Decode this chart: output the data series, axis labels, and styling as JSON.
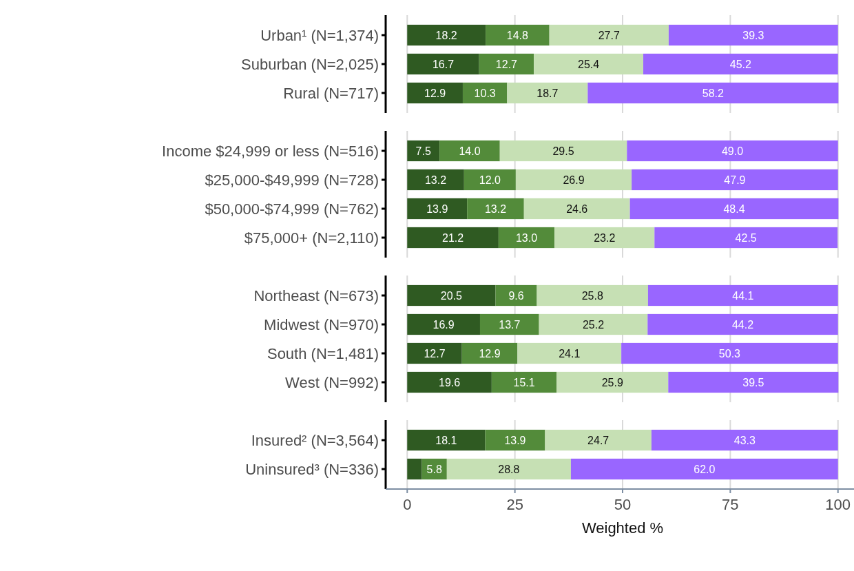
{
  "chart_data": [
    {
      "type": "bar",
      "orientation": "horizontal",
      "stacked": true,
      "categories": [
        "Urban¹ (N=1,374)",
        "Suburban (N=2,025)",
        "Rural (N=717)"
      ],
      "xlim": [
        -5,
        105
      ],
      "xticks": [
        0,
        25,
        50,
        75,
        100
      ],
      "grid": "x",
      "tick_labels": "y",
      "series": [
        {
          "color": "#2f5a22",
          "values": [
            18.2,
            16.7,
            12.9
          ],
          "value_labels": [
            "18.2",
            "16.7",
            "12.9"
          ]
        },
        {
          "color": "#538b3a",
          "values": [
            14.8,
            12.7,
            10.3
          ],
          "value_labels": [
            "14.8",
            "12.7",
            "10.3"
          ]
        },
        {
          "color": "#c6e0b4",
          "values": [
            27.7,
            25.4,
            18.7
          ],
          "value_labels": [
            "27.7",
            "25.4",
            "18.7"
          ]
        },
        {
          "color": "#9966ff",
          "values": [
            39.3,
            45.2,
            58.2
          ],
          "value_labels": [
            "39.3",
            "45.2",
            "58.2"
          ]
        }
      ]
    },
    {
      "type": "bar",
      "orientation": "horizontal",
      "stacked": true,
      "categories": [
        "Income $24,999 or less (N=516)",
        "$25,000-$49,999 (N=728)",
        "$50,000-$74,999 (N=762)",
        "$75,000+ (N=2,110)"
      ],
      "xlim": [
        -5,
        105
      ],
      "xticks": [
        0,
        25,
        50,
        75,
        100
      ],
      "grid": "x",
      "tick_labels": "y",
      "series": [
        {
          "color": "#2f5a22",
          "values": [
            7.5,
            13.2,
            13.9,
            21.2
          ],
          "value_labels": [
            "7.5",
            "13.2",
            "13.9",
            "21.2"
          ]
        },
        {
          "color": "#538b3a",
          "values": [
            14.0,
            12.0,
            13.2,
            13.0
          ],
          "value_labels": [
            "14.0",
            "12.0",
            "13.2",
            "13.0"
          ]
        },
        {
          "color": "#c6e0b4",
          "values": [
            29.5,
            26.9,
            24.6,
            23.2
          ],
          "value_labels": [
            "29.5",
            "26.9",
            "24.6",
            "23.2"
          ]
        },
        {
          "color": "#9966ff",
          "values": [
            49.0,
            47.9,
            48.4,
            42.5
          ],
          "value_labels": [
            "49.0",
            "47.9",
            "48.4",
            "42.5"
          ]
        }
      ]
    },
    {
      "type": "bar",
      "orientation": "horizontal",
      "stacked": true,
      "categories": [
        "Northeast (N=673)",
        "Midwest (N=970)",
        "South (N=1,481)",
        "West (N=992)"
      ],
      "xlim": [
        -5,
        105
      ],
      "xticks": [
        0,
        25,
        50,
        75,
        100
      ],
      "grid": "x",
      "tick_labels": "y",
      "series": [
        {
          "color": "#2f5a22",
          "values": [
            20.5,
            16.9,
            12.7,
            19.6
          ],
          "value_labels": [
            "20.5",
            "16.9",
            "12.7",
            "19.6"
          ]
        },
        {
          "color": "#538b3a",
          "values": [
            9.6,
            13.7,
            12.9,
            15.1
          ],
          "value_labels": [
            "9.6",
            "13.7",
            "12.9",
            "15.1"
          ]
        },
        {
          "color": "#c6e0b4",
          "values": [
            25.8,
            25.2,
            24.1,
            25.9
          ],
          "value_labels": [
            "25.8",
            "25.2",
            "24.1",
            "25.9"
          ]
        },
        {
          "color": "#9966ff",
          "values": [
            44.1,
            44.2,
            50.3,
            39.5
          ],
          "value_labels": [
            "44.1",
            "44.2",
            "50.3",
            "39.5"
          ]
        }
      ]
    },
    {
      "type": "bar",
      "orientation": "horizontal",
      "stacked": true,
      "categories": [
        "Insured² (N=3,564)",
        "Uninsured³ (N=336)"
      ],
      "xlim": [
        -5,
        105
      ],
      "xticks": [
        0,
        25,
        50,
        75,
        100
      ],
      "grid": "x",
      "xlabel": "Weighted %",
      "series": [
        {
          "color": "#2f5a22",
          "values": [
            18.1,
            3.4
          ],
          "value_labels": [
            "18.1",
            null
          ]
        },
        {
          "color": "#538b3a",
          "values": [
            13.9,
            5.8
          ],
          "value_labels": [
            "13.9",
            "5.8"
          ]
        },
        {
          "color": "#c6e0b4",
          "values": [
            24.7,
            28.8
          ],
          "value_labels": [
            "24.7",
            "28.8"
          ]
        },
        {
          "color": "#9966ff",
          "values": [
            43.3,
            62.0
          ],
          "value_labels": [
            "43.3",
            "62.0"
          ]
        }
      ]
    }
  ]
}
